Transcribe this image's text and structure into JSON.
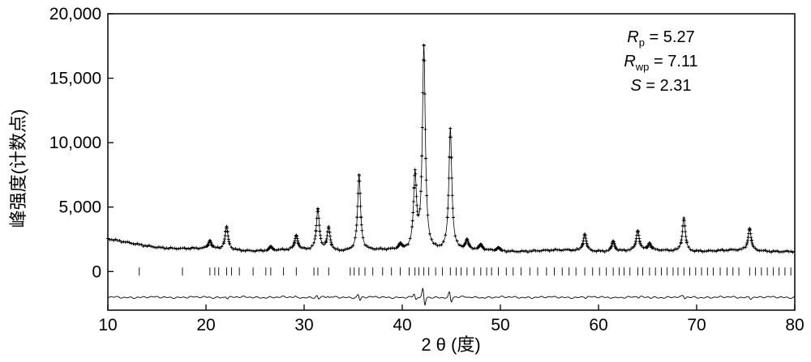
{
  "chart_data": {
    "type": "line",
    "xlabel": "2 θ (度)",
    "ylabel": "峰强度(计数点)",
    "xlim": [
      10,
      80
    ],
    "ylim": [
      -3000,
      20000
    ],
    "xticks": [
      10,
      20,
      30,
      40,
      50,
      60,
      70,
      80
    ],
    "xtick_labels": [
      "10",
      "20",
      "30",
      "40",
      "50",
      "60",
      "70",
      "80"
    ],
    "yticks": [
      0,
      5000,
      10000,
      15000,
      20000
    ],
    "ytick_labels": [
      "0",
      "5,000",
      "10,000",
      "15,000",
      "20,000"
    ],
    "grid": false,
    "legend": "none",
    "background": 1600,
    "series": [
      {
        "role": "observed",
        "style": "plus-markers",
        "peaks": [
          {
            "x": 20.4,
            "y": 600
          },
          {
            "x": 22.1,
            "y": 1800
          },
          {
            "x": 26.6,
            "y": 300
          },
          {
            "x": 29.2,
            "y": 1100
          },
          {
            "x": 31.4,
            "y": 3200
          },
          {
            "x": 32.5,
            "y": 1800
          },
          {
            "x": 35.6,
            "y": 5800
          },
          {
            "x": 39.8,
            "y": 400
          },
          {
            "x": 41.3,
            "y": 5700
          },
          {
            "x": 42.2,
            "y": 15700
          },
          {
            "x": 44.9,
            "y": 9400
          },
          {
            "x": 46.6,
            "y": 700
          },
          {
            "x": 48.0,
            "y": 400
          },
          {
            "x": 49.8,
            "y": 250
          },
          {
            "x": 58.6,
            "y": 1300
          },
          {
            "x": 61.5,
            "y": 800
          },
          {
            "x": 64.0,
            "y": 1500
          },
          {
            "x": 65.2,
            "y": 500
          },
          {
            "x": 68.7,
            "y": 2600
          },
          {
            "x": 75.4,
            "y": 1700
          }
        ]
      },
      {
        "role": "calculated",
        "style": "thin-line"
      },
      {
        "role": "difference",
        "style": "thin-line",
        "offset": -2000
      },
      {
        "role": "reflection-ticks",
        "positions": [
          13.2,
          17.6,
          20.4,
          20.9,
          21.3,
          22.1,
          22.6,
          23.4,
          24.8,
          26.1,
          26.6,
          27.9,
          29.2,
          31.0,
          31.4,
          32.5,
          34.7,
          35.1,
          35.6,
          36.2,
          37.0,
          38.0,
          38.9,
          39.8,
          40.7,
          41.3,
          41.7,
          42.2,
          42.7,
          43.4,
          44.1,
          44.9,
          45.5,
          46.0,
          46.6,
          47.3,
          48.0,
          48.6,
          49.1,
          49.8,
          50.6,
          51.3,
          52.1,
          53.0,
          53.8,
          54.7,
          55.5,
          56.3,
          57.0,
          57.7,
          58.6,
          59.4,
          60.1,
          60.8,
          61.5,
          62.1,
          62.6,
          63.2,
          64.0,
          64.5,
          65.2,
          65.8,
          66.4,
          67.0,
          67.6,
          68.1,
          68.7,
          69.3,
          69.9,
          70.5,
          71.1,
          71.7,
          72.4,
          73.1,
          73.7,
          74.3,
          75.4,
          76.0,
          76.6,
          77.2,
          77.8,
          78.4,
          79.0,
          79.6
        ],
        "y": 0
      }
    ],
    "annotations": [
      {
        "symbol": "R",
        "sub": "p",
        "rest": " = 5.27"
      },
      {
        "symbol": "R",
        "sub": "wp",
        "rest": " = 7.11"
      },
      {
        "symbol": "S",
        "sub": "",
        "rest": " = 2.31"
      }
    ]
  }
}
